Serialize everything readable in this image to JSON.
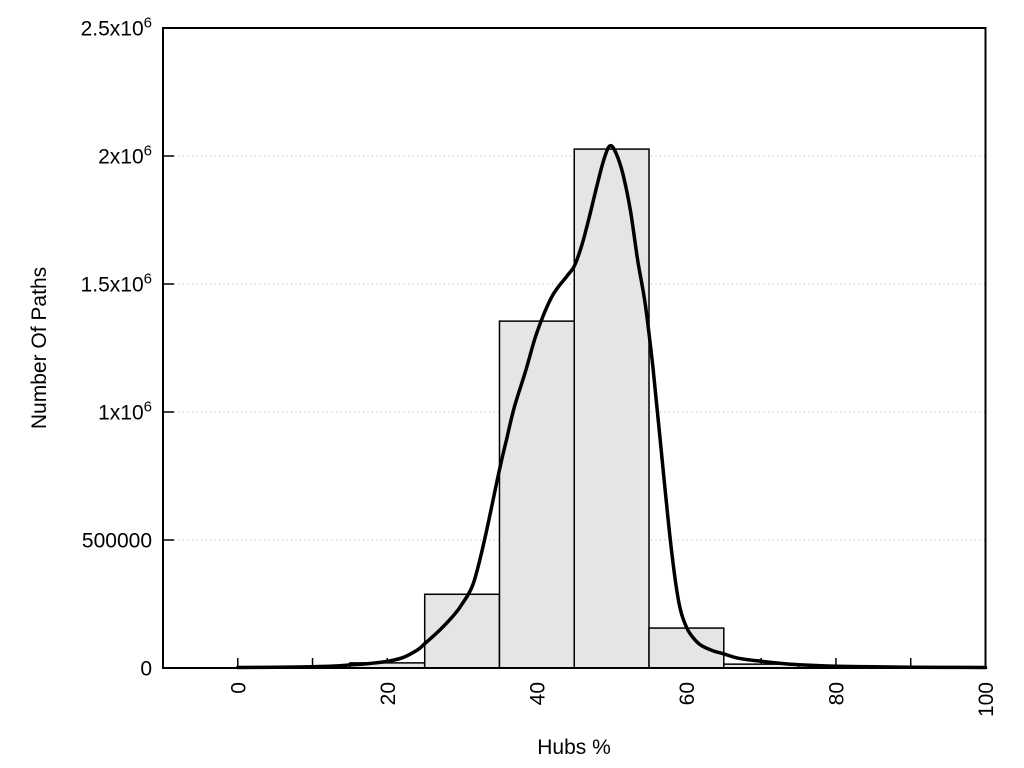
{
  "chart_data": {
    "type": "bar",
    "subtype": "histogram_with_density_curve",
    "title": "",
    "xlabel": "Hubs %",
    "ylabel": "Number Of Paths",
    "xlim": [
      -10,
      100
    ],
    "ylim": [
      0,
      2500000
    ],
    "grid": "dotted horizontal gridlines at labeled y ticks",
    "legend": "none",
    "x_ticks_all": [
      0,
      10,
      20,
      30,
      40,
      50,
      60,
      70,
      80,
      90,
      100
    ],
    "x_tick_labels": [
      {
        "value": 0,
        "label": "0"
      },
      {
        "value": 20,
        "label": "20"
      },
      {
        "value": 40,
        "label": "40"
      },
      {
        "value": 60,
        "label": "60"
      },
      {
        "value": 80,
        "label": "80"
      },
      {
        "value": 100,
        "label": "100"
      }
    ],
    "y_ticks": [
      {
        "value": 0,
        "label": "0"
      },
      {
        "value": 500000,
        "label": "500000"
      },
      {
        "value": 1000000,
        "label": "1x10",
        "sup": "6"
      },
      {
        "value": 1500000,
        "label": "1.5x10",
        "sup": "6"
      },
      {
        "value": 2000000,
        "label": "2x10",
        "sup": "6"
      },
      {
        "value": 2500000,
        "label": "2.5x10",
        "sup": "6"
      }
    ],
    "gridlines_y": [
      500000,
      1000000,
      1500000,
      2000000
    ],
    "bars": [
      {
        "x0": 15,
        "x1": 25,
        "value": 20000
      },
      {
        "x0": 25,
        "x1": 35,
        "value": 288000
      },
      {
        "x0": 35,
        "x1": 45,
        "value": 1355000
      },
      {
        "x0": 45,
        "x1": 55,
        "value": 2027000
      },
      {
        "x0": 55,
        "x1": 65,
        "value": 156000
      },
      {
        "x0": 65,
        "x1": 75,
        "value": 15000
      }
    ],
    "curve": [
      [
        0,
        2000
      ],
      [
        5,
        3000
      ],
      [
        10,
        5000
      ],
      [
        13,
        8000
      ],
      [
        15,
        12000
      ],
      [
        17,
        16000
      ],
      [
        20,
        26000
      ],
      [
        22,
        40000
      ],
      [
        24,
        70000
      ],
      [
        25,
        95000
      ],
      [
        27,
        148000
      ],
      [
        29,
        210000
      ],
      [
        30,
        250000
      ],
      [
        31.5,
        330000
      ],
      [
        33,
        500000
      ],
      [
        35,
        775000
      ],
      [
        36,
        900000
      ],
      [
        37,
        1020000
      ],
      [
        38.5,
        1160000
      ],
      [
        40,
        1310000
      ],
      [
        42,
        1450000
      ],
      [
        44,
        1530000
      ],
      [
        45,
        1570000
      ],
      [
        46,
        1650000
      ],
      [
        47,
        1760000
      ],
      [
        48,
        1880000
      ],
      [
        49,
        1990000
      ],
      [
        49.8,
        2040000
      ],
      [
        50.6,
        2010000
      ],
      [
        51.5,
        1930000
      ],
      [
        52.5,
        1790000
      ],
      [
        53.5,
        1590000
      ],
      [
        54.5,
        1420000
      ],
      [
        55.5,
        1180000
      ],
      [
        56.3,
        950000
      ],
      [
        57,
        740000
      ],
      [
        58,
        460000
      ],
      [
        59,
        255000
      ],
      [
        60,
        160000
      ],
      [
        61,
        115000
      ],
      [
        62,
        88000
      ],
      [
        63.5,
        68000
      ],
      [
        65,
        55000
      ],
      [
        67,
        38000
      ],
      [
        70,
        26000
      ],
      [
        73,
        17000
      ],
      [
        75,
        13000
      ],
      [
        78,
        9000
      ],
      [
        80,
        7000
      ],
      [
        85,
        4500
      ],
      [
        90,
        3000
      ],
      [
        95,
        2500
      ],
      [
        100,
        2000
      ]
    ],
    "colors": {
      "background": "#ffffff",
      "bar_fill": "#e5e5e5",
      "bar_stroke": "#000000",
      "curve": "#000000",
      "grid": "#bcbcbc",
      "frame": "#000000",
      "text": "#000000"
    }
  }
}
